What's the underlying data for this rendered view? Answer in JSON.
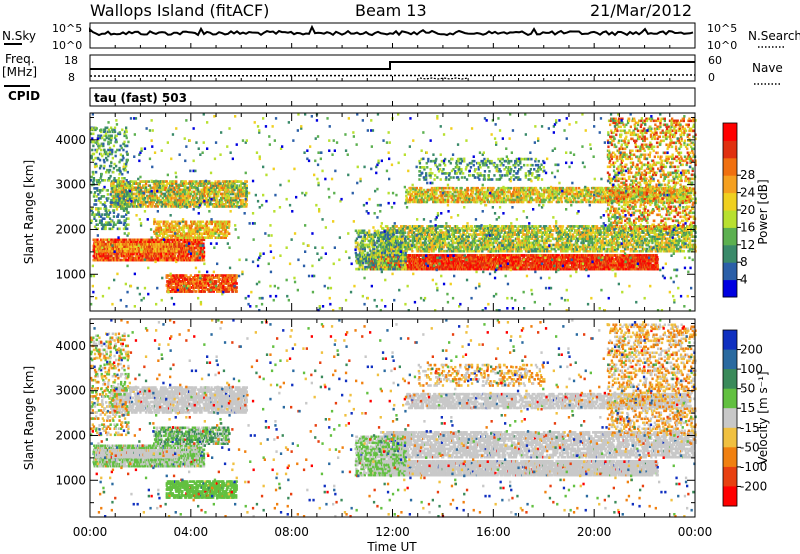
{
  "header": {
    "site": "Wallops Island (fitACF)",
    "beam": "Beam 13",
    "date": "21/Mar/2012"
  },
  "strip_labels": {
    "nsky": "N.Sky",
    "nsearch": "N.Search",
    "freq": "Freq.",
    "freq_unit": "[MHz]",
    "nave": "Nave",
    "cpid": "CPID",
    "cpid_value": "tau (fast) 503"
  },
  "strip_ticks": {
    "noise_left": [
      "10^5",
      "10^0"
    ],
    "noise_right": [
      "10^5",
      "10^0"
    ],
    "freq_left": [
      "18",
      "8"
    ],
    "freq_right": [
      "60",
      "0"
    ]
  },
  "chart_data": [
    {
      "type": "heatmap",
      "name": "power",
      "ylabel": "Slant Range [km]",
      "ylim": [
        180,
        4600
      ],
      "yticks": [
        1000,
        2000,
        3000,
        4000
      ],
      "xlim": [
        0,
        24
      ],
      "colorbar_label": "Power [dB]",
      "colorbar_ticks": [
        "4",
        "8",
        "12",
        "16",
        "20",
        "24",
        "28"
      ],
      "colors": [
        "#0000e0",
        "#2b5fa8",
        "#3a8a6a",
        "#5cb050",
        "#b8e030",
        "#f0d020",
        "#f5a020",
        "#f07010",
        "#e03010",
        "#ff0000"
      ]
    },
    {
      "type": "heatmap",
      "name": "velocity",
      "ylabel": "Slant Range [km]",
      "ylim": [
        180,
        4600
      ],
      "yticks": [
        1000,
        2000,
        3000,
        4000
      ],
      "xlim": [
        0,
        24
      ],
      "colorbar_label": "Velocity [m s⁻¹]",
      "colorbar_ticks": [
        "200",
        "100",
        "50",
        "15",
        "-15",
        "-50",
        "-100",
        "-200"
      ],
      "colors": [
        "#1030c0",
        "#2a6aa0",
        "#3a8a5a",
        "#62c040",
        "#c8c8c8",
        "#f0c040",
        "#f08010",
        "#e84010",
        "#ff0000"
      ]
    }
  ],
  "xaxis": {
    "ticks": [
      "00:00",
      "04:00",
      "08:00",
      "12:00",
      "16:00",
      "20:00",
      "00:00"
    ],
    "label": "Time UT"
  }
}
